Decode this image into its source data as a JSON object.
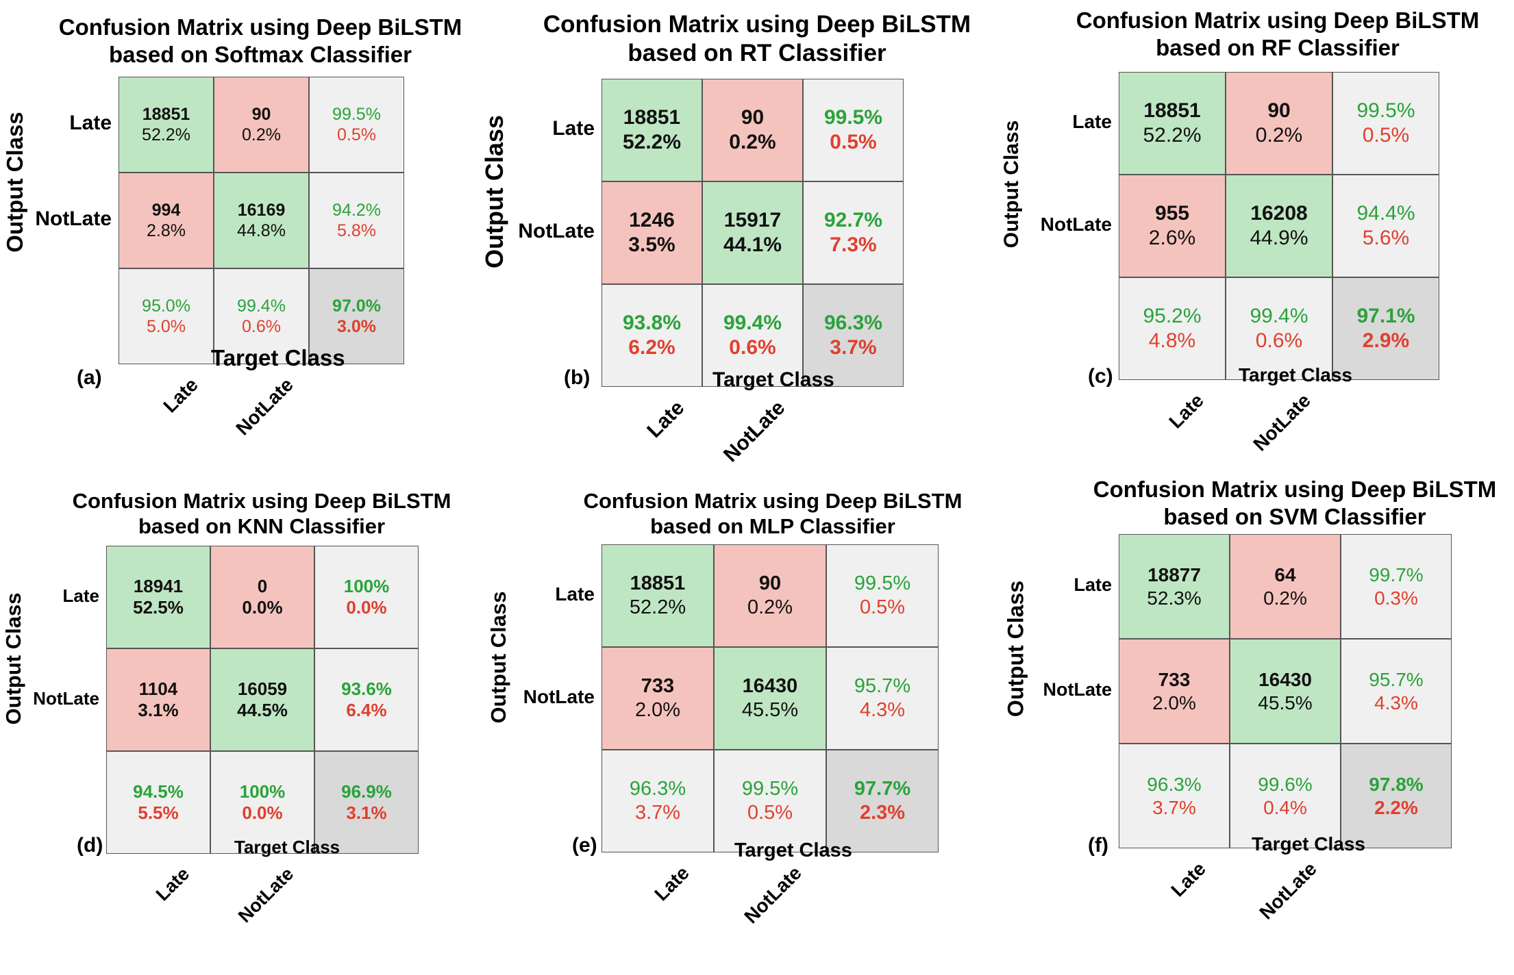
{
  "chart_data": [
    {
      "type": "heatmap",
      "panel": "(a)",
      "title": [
        "Confusion Matrix using Deep BiLSTM",
        "based on Softmax Classifier"
      ],
      "ylabel": "Output Class",
      "xlabel": "Target Class",
      "row_labels": [
        "Late",
        "NotLate"
      ],
      "col_labels": [
        "Late",
        "NotLate"
      ],
      "matrix": [
        [
          "18851",
          "52.2%",
          "90",
          "0.2%"
        ],
        [
          "994",
          "2.8%",
          "16169",
          "44.8%"
        ]
      ],
      "cells": [
        [
          "18851",
          "52.2%"
        ],
        [
          "90",
          "0.2%"
        ],
        [
          "99.5%",
          "0.5%"
        ],
        [
          "994",
          "2.8%"
        ],
        [
          "16169",
          "44.8%"
        ],
        [
          "94.2%",
          "5.8%"
        ],
        [
          "95.0%",
          "5.0%"
        ],
        [
          "99.4%",
          "0.6%"
        ],
        [
          "97.0%",
          "3.0%"
        ]
      ]
    },
    {
      "type": "heatmap",
      "panel": "(b)",
      "title": [
        "Confusion Matrix using Deep BiLSTM",
        "based on RT Classifier"
      ],
      "ylabel": "Output Class",
      "xlabel": "Target Class",
      "row_labels": [
        "Late",
        "NotLate"
      ],
      "col_labels": [
        "Late",
        "NotLate"
      ],
      "cells": [
        [
          "18851",
          "52.2%"
        ],
        [
          "90",
          "0.2%"
        ],
        [
          "99.5%",
          "0.5%"
        ],
        [
          "1246",
          "3.5%"
        ],
        [
          "15917",
          "44.1%"
        ],
        [
          "92.7%",
          "7.3%"
        ],
        [
          "93.8%",
          "6.2%"
        ],
        [
          "99.4%",
          "0.6%"
        ],
        [
          "96.3%",
          "3.7%"
        ]
      ]
    },
    {
      "type": "heatmap",
      "panel": "(c)",
      "title": [
        "Confusion Matrix using Deep BiLSTM",
        "based on RF Classifier"
      ],
      "ylabel": "Output Class",
      "xlabel": "Target Class",
      "row_labels": [
        "Late",
        "NotLate"
      ],
      "col_labels": [
        "Late",
        "NotLate"
      ],
      "cells": [
        [
          "18851",
          "52.2%"
        ],
        [
          "90",
          "0.2%"
        ],
        [
          "99.5%",
          "0.5%"
        ],
        [
          "955",
          "2.6%"
        ],
        [
          "16208",
          "44.9%"
        ],
        [
          "94.4%",
          "5.6%"
        ],
        [
          "95.2%",
          "4.8%"
        ],
        [
          "99.4%",
          "0.6%"
        ],
        [
          "97.1%",
          "2.9%"
        ]
      ]
    },
    {
      "type": "heatmap",
      "panel": "(d)",
      "title": [
        "Confusion Matrix using Deep BiLSTM",
        "based on KNN Classifier"
      ],
      "ylabel": "Output Class",
      "xlabel": "Target Class",
      "row_labels": [
        "Late",
        "NotLate"
      ],
      "col_labels": [
        "Late",
        "NotLate"
      ],
      "cells": [
        [
          "18941",
          "52.5%"
        ],
        [
          "0",
          "0.0%"
        ],
        [
          "100%",
          "0.0%"
        ],
        [
          "1104",
          "3.1%"
        ],
        [
          "16059",
          "44.5%"
        ],
        [
          "93.6%",
          "6.4%"
        ],
        [
          "94.5%",
          "5.5%"
        ],
        [
          "100%",
          "0.0%"
        ],
        [
          "96.9%",
          "3.1%"
        ]
      ]
    },
    {
      "type": "heatmap",
      "panel": "(e)",
      "title": [
        "Confusion Matrix using Deep BiLSTM",
        "based on MLP Classifier"
      ],
      "ylabel": "Output Class",
      "xlabel": "Target Class",
      "row_labels": [
        "Late",
        "NotLate"
      ],
      "col_labels": [
        "Late",
        "NotLate"
      ],
      "cells": [
        [
          "18851",
          "52.2%"
        ],
        [
          "90",
          "0.2%"
        ],
        [
          "99.5%",
          "0.5%"
        ],
        [
          "733",
          "2.0%"
        ],
        [
          "16430",
          "45.5%"
        ],
        [
          "95.7%",
          "4.3%"
        ],
        [
          "96.3%",
          "3.7%"
        ],
        [
          "99.5%",
          "0.5%"
        ],
        [
          "97.7%",
          "2.3%"
        ]
      ]
    },
    {
      "type": "heatmap",
      "panel": "(f)",
      "title": [
        "Confusion Matrix using Deep BiLSTM",
        "based on SVM Classifier"
      ],
      "ylabel": "Output Class",
      "xlabel": "Target Class",
      "row_labels": [
        "Late",
        "NotLate"
      ],
      "col_labels": [
        "Late",
        "NotLate"
      ],
      "cells": [
        [
          "18877",
          "52.3%"
        ],
        [
          "64",
          "0.2%"
        ],
        [
          "99.7%",
          "0.3%"
        ],
        [
          "733",
          "2.0%"
        ],
        [
          "16430",
          "45.5%"
        ],
        [
          "95.7%",
          "4.3%"
        ],
        [
          "96.3%",
          "3.7%"
        ],
        [
          "99.6%",
          "0.4%"
        ],
        [
          "97.8%",
          "2.2%"
        ]
      ]
    }
  ]
}
